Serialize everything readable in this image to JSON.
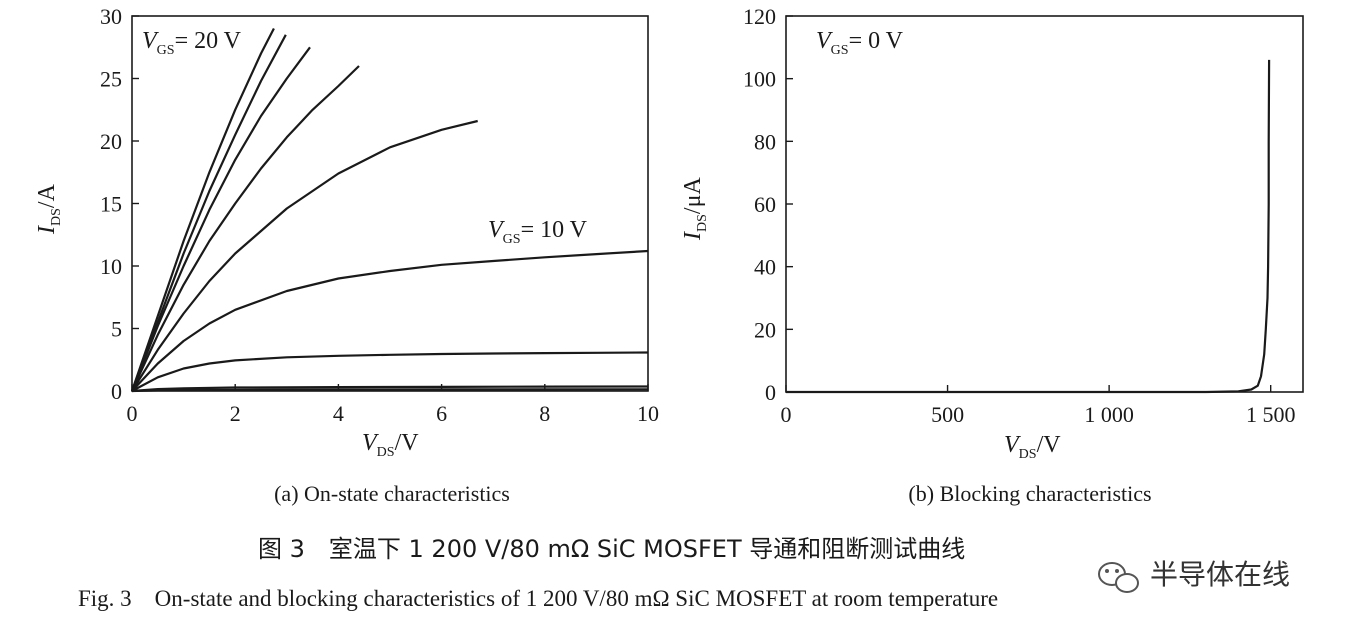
{
  "chart_data": [
    {
      "type": "line",
      "panel": "(a)",
      "caption": "(a) On-state characteristics",
      "xlabel": {
        "main": "V",
        "sub": "DS",
        "unit": "/V"
      },
      "ylabel": {
        "main": "I",
        "sub": "DS",
        "unit": "/A"
      },
      "xlim": [
        0,
        10
      ],
      "ylim": [
        0,
        30
      ],
      "xticks": [
        0,
        2,
        4,
        6,
        8,
        10
      ],
      "yticks": [
        0,
        5,
        10,
        15,
        20,
        25,
        30
      ],
      "grid": false,
      "annotations": [
        {
          "main": "V",
          "sub": "GS",
          "text": "= 20 V"
        },
        {
          "main": "V",
          "sub": "GS",
          "text": "= 10 V"
        }
      ],
      "series": [
        {
          "x": [
            0,
            0.5,
            1,
            1.5,
            2,
            2.5,
            2.75
          ],
          "y": [
            0,
            6,
            12,
            17.5,
            22.5,
            27,
            29
          ]
        },
        {
          "x": [
            0,
            0.5,
            1,
            1.5,
            2,
            2.5,
            2.98
          ],
          "y": [
            0,
            5.5,
            11,
            16,
            20.5,
            24.8,
            28.5
          ]
        },
        {
          "x": [
            0,
            0.5,
            1,
            1.5,
            2,
            2.5,
            3,
            3.45
          ],
          "y": [
            0,
            5.2,
            10,
            14.5,
            18.5,
            22,
            25,
            27.5
          ]
        },
        {
          "x": [
            0,
            0.5,
            1,
            1.5,
            2,
            2.5,
            3,
            3.5,
            4,
            4.4
          ],
          "y": [
            0,
            4.5,
            8.5,
            12,
            15,
            17.8,
            20.3,
            22.5,
            24.4,
            26
          ]
        },
        {
          "x": [
            0,
            0.5,
            1,
            1.5,
            2,
            3,
            4,
            5,
            6,
            6.7
          ],
          "y": [
            0,
            3.3,
            6.2,
            8.8,
            11,
            14.6,
            17.4,
            19.5,
            20.9,
            21.6
          ]
        },
        {
          "x": [
            0,
            0.5,
            1,
            1.5,
            2,
            3,
            4,
            5,
            6,
            7,
            8,
            9,
            10
          ],
          "y": [
            0,
            2.2,
            4,
            5.4,
            6.5,
            8,
            9,
            9.6,
            10.1,
            10.4,
            10.7,
            10.95,
            11.2
          ]
        },
        {
          "x": [
            0,
            0.5,
            1,
            1.5,
            2,
            3,
            4,
            5,
            6,
            7,
            8,
            9,
            10
          ],
          "y": [
            0,
            1.1,
            1.8,
            2.2,
            2.45,
            2.7,
            2.82,
            2.9,
            2.96,
            3,
            3.03,
            3.06,
            3.08
          ]
        },
        {
          "x": [
            0,
            0.5,
            1,
            2,
            4,
            6,
            8,
            10
          ],
          "y": [
            0,
            0.15,
            0.22,
            0.28,
            0.31,
            0.33,
            0.35,
            0.36
          ]
        },
        {
          "x": [
            0,
            0.5,
            1,
            2,
            4,
            6,
            8,
            10
          ],
          "y": [
            0,
            0.05,
            0.08,
            0.1,
            0.12,
            0.13,
            0.13,
            0.14
          ]
        }
      ]
    },
    {
      "type": "line",
      "panel": "(b)",
      "caption": "(b) Blocking characteristics",
      "xlabel": {
        "main": "V",
        "sub": "DS",
        "unit": "/V"
      },
      "ylabel": {
        "main": "I",
        "sub": "DS",
        "unit": "/μA"
      },
      "xlim": [
        0,
        1600
      ],
      "ylim": [
        0,
        120
      ],
      "xticks": [
        0,
        500,
        1000,
        1500
      ],
      "xticklabels": [
        "0",
        "500",
        "1 000",
        "1 500"
      ],
      "yticks": [
        0,
        20,
        40,
        60,
        80,
        100,
        120
      ],
      "grid": false,
      "annotations": [
        {
          "main": "V",
          "sub": "GS",
          "text": "= 0 V"
        }
      ],
      "series": [
        {
          "x": [
            0,
            500,
            1000,
            1300,
            1400,
            1440,
            1460,
            1470,
            1480,
            1485,
            1490,
            1492,
            1494,
            1494,
            1495
          ],
          "y": [
            0,
            0,
            0,
            0,
            0.2,
            0.8,
            2,
            5,
            12,
            20,
            30,
            40,
            60,
            80,
            106
          ]
        }
      ]
    }
  ],
  "figure_caption_cn": "图 3　室温下 1 200 V/80 mΩ SiC MOSFET 导通和阻断测试曲线",
  "figure_caption_en": "Fig. 3　On-state and blocking characteristics of 1 200 V/80 mΩ SiC MOSFET at room temperature",
  "watermark": "半导体在线",
  "watermark_icon": "wechat-icon"
}
